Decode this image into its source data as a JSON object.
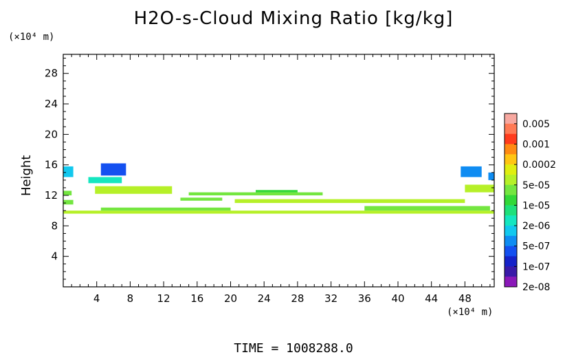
{
  "chart_data": {
    "type": "heatmap",
    "title": "H2O-s-Cloud Mixing Ratio [kg/kg]",
    "ylabel": "Height",
    "x_unit": "(×10⁴ m)",
    "y_unit": "(×10⁴ m)",
    "xlim": [
      0,
      51.5
    ],
    "ylim": [
      0,
      30.5
    ],
    "x_ticks": [
      4,
      8,
      12,
      16,
      20,
      24,
      28,
      32,
      36,
      40,
      44,
      48
    ],
    "y_ticks": [
      4,
      8,
      12,
      16,
      20,
      24,
      28
    ],
    "footer": "TIME = 1008288.0",
    "colorbar": {
      "labels": [
        "0.005",
        "0.001",
        "0.0002",
        "5e-05",
        "1e-05",
        "2e-06",
        "5e-07",
        "1e-07",
        "2e-08"
      ],
      "colors": [
        "#f7a8a0",
        "#ff7a55",
        "#ff3b1c",
        "#ff8a12",
        "#ffc512",
        "#e0ee10",
        "#b6f028",
        "#74e640",
        "#32d838",
        "#1fe07a",
        "#15e6c0",
        "#12c8ee",
        "#0f8cf2",
        "#1450f0",
        "#1622c8",
        "#3a1aa8",
        "#8a18b8"
      ]
    },
    "regions": [
      {
        "x0": 0,
        "x1": 51.5,
        "y0": 9.6,
        "y1": 10.0,
        "level": 6
      },
      {
        "x0": 4.5,
        "x1": 20,
        "y0": 10.0,
        "y1": 10.4,
        "level": 7
      },
      {
        "x0": 36,
        "x1": 51,
        "y0": 10.0,
        "y1": 10.6,
        "level": 7
      },
      {
        "x0": 0,
        "x1": 1.2,
        "y0": 10.8,
        "y1": 11.4,
        "level": 7
      },
      {
        "x0": 20.5,
        "x1": 48,
        "y0": 11.0,
        "y1": 11.5,
        "level": 6
      },
      {
        "x0": 14,
        "x1": 19,
        "y0": 11.3,
        "y1": 11.7,
        "level": 7
      },
      {
        "x0": 3.8,
        "x1": 13,
        "y0": 12.2,
        "y1": 13.2,
        "level": 6
      },
      {
        "x0": 15,
        "x1": 31,
        "y0": 12.0,
        "y1": 12.4,
        "level": 7
      },
      {
        "x0": 23,
        "x1": 28,
        "y0": 12.4,
        "y1": 12.7,
        "level": 8
      },
      {
        "x0": 0,
        "x1": 1,
        "y0": 12.0,
        "y1": 12.6,
        "level": 7
      },
      {
        "x0": 48,
        "x1": 51.5,
        "y0": 12.4,
        "y1": 13.4,
        "level": 6
      },
      {
        "x0": 3,
        "x1": 7,
        "y0": 13.6,
        "y1": 14.4,
        "level": 10
      },
      {
        "x0": 0,
        "x1": 1.2,
        "y0": 14.4,
        "y1": 15.8,
        "level": 11
      },
      {
        "x0": 4.5,
        "x1": 7.5,
        "y0": 14.6,
        "y1": 16.2,
        "level": 13
      },
      {
        "x0": 47.5,
        "x1": 50,
        "y0": 14.4,
        "y1": 15.8,
        "level": 12
      },
      {
        "x0": 50.8,
        "x1": 51.5,
        "y0": 14.0,
        "y1": 15.0,
        "level": 12
      }
    ]
  }
}
